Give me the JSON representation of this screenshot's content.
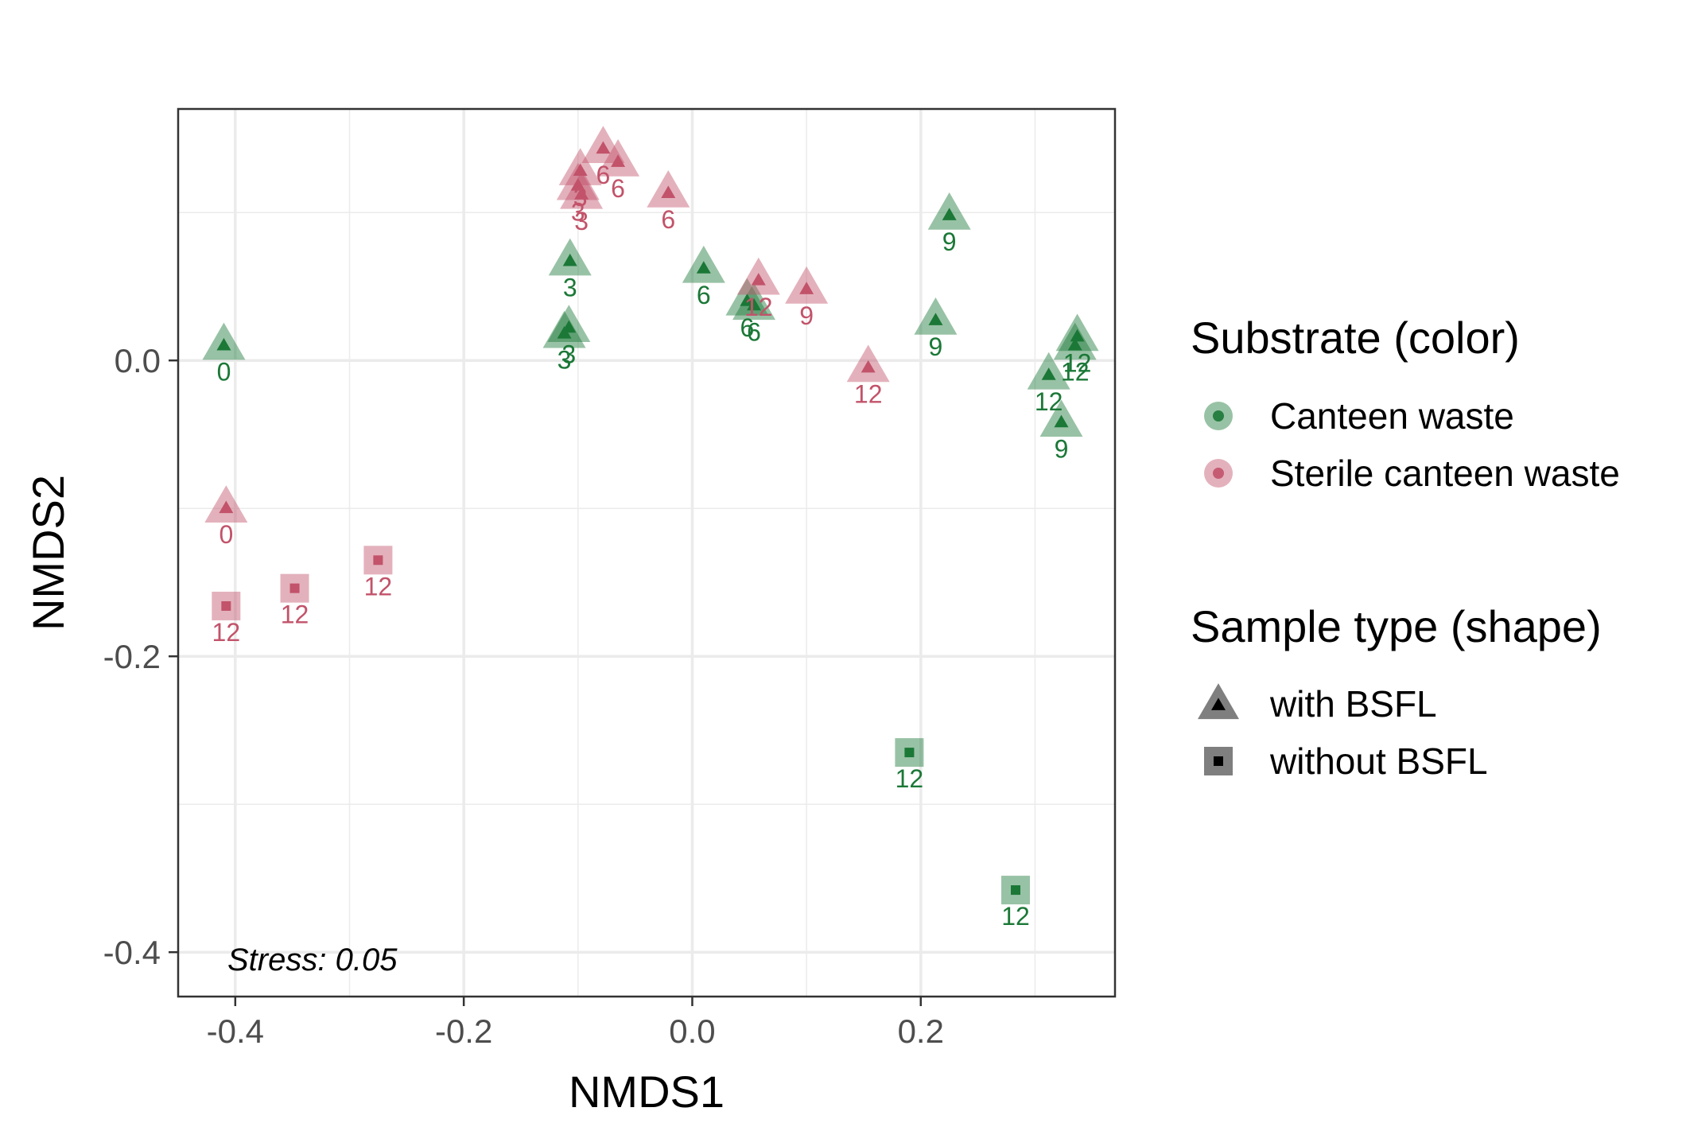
{
  "chart_data": {
    "type": "scatter",
    "xlabel": "NMDS1",
    "ylabel": "NMDS2",
    "xlim": [
      -0.45,
      0.37
    ],
    "ylim": [
      -0.43,
      0.17
    ],
    "x_ticks": [
      -0.4,
      -0.2,
      0.0,
      0.2
    ],
    "x_tick_labels": [
      "-0.4",
      "-0.2",
      "0.0",
      "0.2"
    ],
    "y_ticks": [
      -0.4,
      -0.2,
      0.0
    ],
    "y_tick_labels": [
      "-0.4",
      "-0.2",
      "0.0"
    ],
    "grid": true,
    "annotation": "Stress: 0.05",
    "colors": {
      "canteen": "#1b7837",
      "sterile": "#c2536a"
    },
    "legend": {
      "placement": "right",
      "color_title": "Substrate (color)",
      "color_entries": [
        {
          "key": "canteen",
          "label": "Canteen waste"
        },
        {
          "key": "sterile",
          "label": "Sterile canteen waste"
        }
      ],
      "shape_title": "Sample type (shape)",
      "shape_entries": [
        {
          "key": "triangle",
          "label": "with BSFL"
        },
        {
          "key": "square",
          "label": "without BSFL"
        }
      ]
    },
    "points": [
      {
        "x": -0.41,
        "y": 0.01,
        "substrate": "canteen",
        "shape": "triangle",
        "label": "0"
      },
      {
        "x": -0.107,
        "y": 0.067,
        "substrate": "canteen",
        "shape": "triangle",
        "label": "3"
      },
      {
        "x": -0.108,
        "y": 0.022,
        "substrate": "canteen",
        "shape": "triangle",
        "label": "3"
      },
      {
        "x": -0.112,
        "y": 0.018,
        "substrate": "canteen",
        "shape": "triangle",
        "label": "3"
      },
      {
        "x": 0.01,
        "y": 0.062,
        "substrate": "canteen",
        "shape": "triangle",
        "label": "6"
      },
      {
        "x": 0.048,
        "y": 0.04,
        "substrate": "canteen",
        "shape": "triangle",
        "label": "6"
      },
      {
        "x": 0.054,
        "y": 0.037,
        "substrate": "canteen",
        "shape": "triangle",
        "label": "6"
      },
      {
        "x": 0.225,
        "y": 0.098,
        "substrate": "canteen",
        "shape": "triangle",
        "label": "9"
      },
      {
        "x": 0.213,
        "y": 0.027,
        "substrate": "canteen",
        "shape": "triangle",
        "label": "9"
      },
      {
        "x": 0.323,
        "y": -0.042,
        "substrate": "canteen",
        "shape": "triangle",
        "label": "9"
      },
      {
        "x": 0.337,
        "y": 0.016,
        "substrate": "canteen",
        "shape": "triangle",
        "label": "12"
      },
      {
        "x": 0.335,
        "y": 0.01,
        "substrate": "canteen",
        "shape": "triangle",
        "label": "12"
      },
      {
        "x": 0.312,
        "y": -0.01,
        "substrate": "canteen",
        "shape": "triangle",
        "label": "12"
      },
      {
        "x": 0.19,
        "y": -0.265,
        "substrate": "canteen",
        "shape": "square",
        "label": "12"
      },
      {
        "x": 0.283,
        "y": -0.358,
        "substrate": "canteen",
        "shape": "square",
        "label": "12"
      },
      {
        "x": -0.408,
        "y": -0.1,
        "substrate": "sterile",
        "shape": "triangle",
        "label": "0"
      },
      {
        "x": -0.098,
        "y": 0.128,
        "substrate": "sterile",
        "shape": "triangle",
        "label": "3"
      },
      {
        "x": -0.1,
        "y": 0.118,
        "substrate": "sterile",
        "shape": "triangle",
        "label": "3"
      },
      {
        "x": -0.097,
        "y": 0.112,
        "substrate": "sterile",
        "shape": "triangle",
        "label": "3"
      },
      {
        "x": -0.078,
        "y": 0.143,
        "substrate": "sterile",
        "shape": "triangle",
        "label": "6"
      },
      {
        "x": -0.065,
        "y": 0.134,
        "substrate": "sterile",
        "shape": "triangle",
        "label": "6"
      },
      {
        "x": -0.021,
        "y": 0.113,
        "substrate": "sterile",
        "shape": "triangle",
        "label": "6"
      },
      {
        "x": 0.058,
        "y": 0.054,
        "substrate": "sterile",
        "shape": "triangle",
        "label": "12"
      },
      {
        "x": 0.1,
        "y": 0.048,
        "substrate": "sterile",
        "shape": "triangle",
        "label": "9"
      },
      {
        "x": 0.154,
        "y": -0.005,
        "substrate": "sterile",
        "shape": "triangle",
        "label": "12"
      },
      {
        "x": -0.408,
        "y": -0.166,
        "substrate": "sterile",
        "shape": "square",
        "label": "12"
      },
      {
        "x": -0.348,
        "y": -0.154,
        "substrate": "sterile",
        "shape": "square",
        "label": "12"
      },
      {
        "x": -0.275,
        "y": -0.135,
        "substrate": "sterile",
        "shape": "square",
        "label": "12"
      }
    ]
  }
}
